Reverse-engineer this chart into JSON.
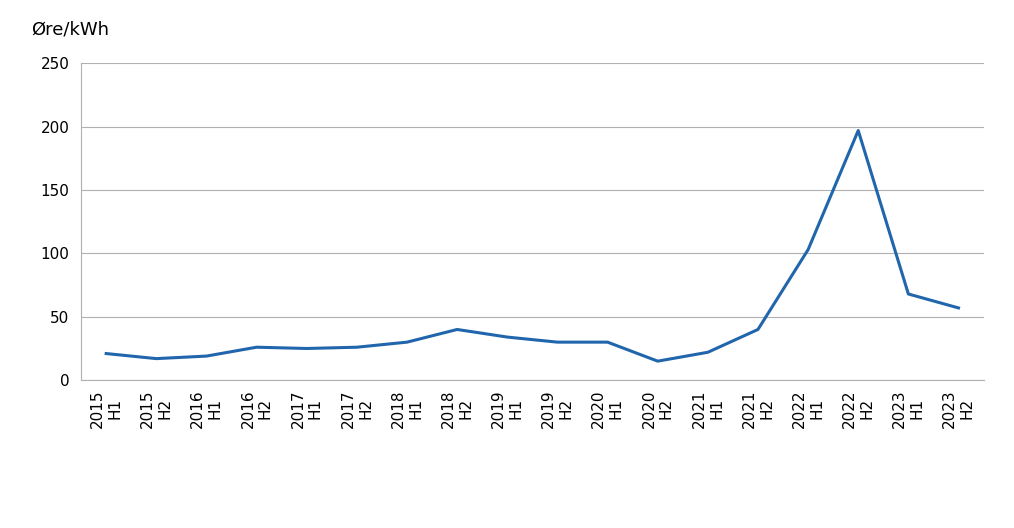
{
  "x_labels": [
    "2015\nH1",
    "2015\nH2",
    "2016\nH1",
    "2016\nH2",
    "2017\nH1",
    "2017\nH2",
    "2018\nH1",
    "2018\nH2",
    "2019\nH1",
    "2019\nH2",
    "2020\nH1",
    "2020\nH2",
    "2021\nH1",
    "2021\nH2",
    "2022\nH1",
    "2022\nH2",
    "2023\nH1",
    "2023\nH2"
  ],
  "values": [
    21,
    17,
    19,
    26,
    25,
    26,
    30,
    40,
    34,
    30,
    30,
    15,
    22,
    40,
    103,
    197,
    68,
    57
  ],
  "ylabel": "Øre/kWh",
  "ylim": [
    0,
    250
  ],
  "yticks": [
    0,
    50,
    100,
    150,
    200,
    250
  ],
  "line_color": "#2166ac",
  "line_width": 2.2,
  "background_color": "#ffffff",
  "grid_color": "#b0b0b0",
  "tick_label_fontsize": 11,
  "ylabel_fontsize": 13
}
